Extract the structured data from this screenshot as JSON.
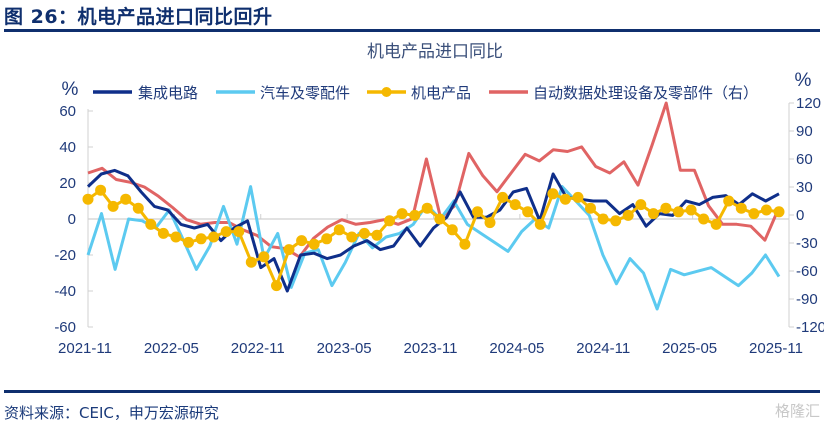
{
  "figure": {
    "title": "图 26：机电产品进口同比回升",
    "source": "资料来源：CEIC，申万宏源研究",
    "watermark": "格隆汇"
  },
  "chart_data": {
    "type": "line",
    "title": "机电产品进口同比",
    "ylabel_left": "%",
    "ylabel_right": "%",
    "ylim_left": [
      -60,
      60
    ],
    "ylim_right": [
      -120,
      120
    ],
    "yticks_left": [
      "60",
      "40",
      "20",
      "0",
      "-20",
      "-40",
      "-60"
    ],
    "yticks_right": [
      "120",
      "90",
      "60",
      "30",
      "0",
      "-30",
      "-60",
      "-90",
      "-120"
    ],
    "xtick_labels": [
      "2021-11",
      "2022-05",
      "2022-11",
      "2023-05",
      "2023-11",
      "2024-05",
      "2024-11",
      "2025-05",
      "2025-11"
    ],
    "x_start": "2021-11",
    "x_end": "2025-11",
    "grid": false,
    "legend_position": "top",
    "series": [
      {
        "name": "集成电路",
        "axis": "left",
        "color": "#0f2f8a",
        "markers": false,
        "values": [
          18,
          25,
          27,
          24,
          15,
          7,
          5,
          -3,
          -5,
          -3,
          -12,
          -5,
          -1,
          -27,
          -22,
          -40,
          -20,
          -19,
          -22,
          -20,
          -15,
          -12,
          -17,
          -15,
          -5,
          -15,
          -5,
          1,
          15,
          1,
          1,
          5,
          15,
          17,
          -1,
          25,
          12,
          11,
          10,
          10,
          3,
          8,
          -4,
          3,
          2,
          10,
          8,
          12,
          13,
          8,
          14,
          10,
          14
        ]
      },
      {
        "name": "汽车及零配件",
        "axis": "left",
        "color": "#5ccaf0",
        "markers": false,
        "values": [
          -20,
          3,
          -28,
          0,
          -1,
          -5,
          5,
          -11,
          -28,
          -15,
          7,
          -14,
          18,
          -22,
          -8,
          -38,
          -19,
          -17,
          -37,
          -24,
          -8,
          -16,
          -10,
          -8,
          -3,
          8,
          0,
          10,
          -3,
          -8,
          -13,
          -18,
          -7,
          0,
          -5,
          18,
          10,
          2,
          -20,
          -36,
          -22,
          -30,
          -50,
          -28,
          -31,
          -29,
          -27,
          -32,
          -37,
          -30,
          -20,
          -32
        ]
      },
      {
        "name": "机电产品",
        "axis": "left",
        "color": "#f5b800",
        "markers": true,
        "values": [
          11,
          16,
          7,
          11,
          6,
          -3,
          -8,
          -10,
          -13,
          -11,
          -10,
          -7,
          -7,
          -24,
          -21,
          -37,
          -17,
          -12,
          -14,
          -11,
          -6,
          -10,
          -8,
          -9,
          -1,
          3,
          2,
          6,
          0,
          -6,
          -14,
          4,
          -2,
          12,
          8,
          4,
          -3,
          14,
          11,
          12,
          6,
          0,
          -1,
          2,
          8,
          3,
          6,
          4,
          5,
          0,
          -3,
          10,
          6,
          3,
          5,
          4
        ]
      },
      {
        "name": "自动数据处理设备及零部件（右）",
        "axis": "right",
        "color": "#e06464",
        "markers": false,
        "values": [
          45,
          50,
          38,
          35,
          30,
          20,
          8,
          -5,
          -10,
          -8,
          -8,
          -16,
          -22,
          -34,
          -36,
          -45,
          -25,
          -13,
          -5,
          -10,
          -8,
          -5,
          -10,
          -4,
          60,
          -3,
          10,
          66,
          42,
          25,
          45,
          65,
          58,
          70,
          68,
          73,
          52,
          45,
          57,
          32,
          75,
          120,
          48,
          48,
          10,
          -10,
          -10,
          -12,
          -27,
          8
        ]
      }
    ]
  }
}
